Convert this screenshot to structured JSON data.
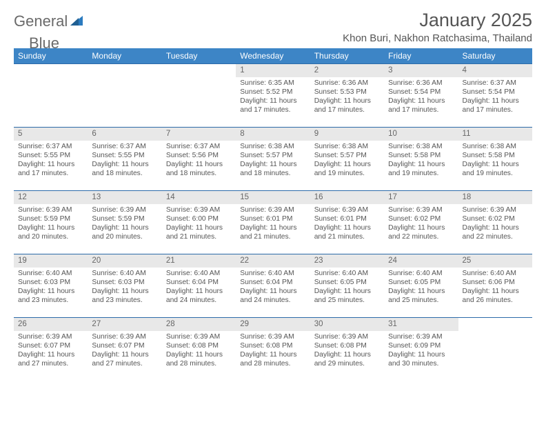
{
  "brand": {
    "name_a": "General",
    "name_b": "Blue"
  },
  "title": "January 2025",
  "location": "Khon Buri, Nakhon Ratchasima, Thailand",
  "colors": {
    "header_bg": "#3d85c6",
    "header_text": "#ffffff",
    "row_divider": "#2b6aa8",
    "daynum_bg": "#e8e8e8",
    "body_text": "#555555",
    "logo_gray": "#6a6a6a",
    "logo_blue": "#2b7bbf",
    "page_bg": "#ffffff"
  },
  "font": {
    "title_size": 27,
    "location_size": 15,
    "header_size": 12,
    "daynum_size": 11.5,
    "body_size": 10.3
  },
  "weekdays": [
    "Sunday",
    "Monday",
    "Tuesday",
    "Wednesday",
    "Thursday",
    "Friday",
    "Saturday"
  ],
  "weeks": [
    [
      null,
      null,
      null,
      {
        "n": "1",
        "sr": "6:35 AM",
        "ss": "5:52 PM",
        "dl": "11 hours and 17 minutes."
      },
      {
        "n": "2",
        "sr": "6:36 AM",
        "ss": "5:53 PM",
        "dl": "11 hours and 17 minutes."
      },
      {
        "n": "3",
        "sr": "6:36 AM",
        "ss": "5:54 PM",
        "dl": "11 hours and 17 minutes."
      },
      {
        "n": "4",
        "sr": "6:37 AM",
        "ss": "5:54 PM",
        "dl": "11 hours and 17 minutes."
      }
    ],
    [
      {
        "n": "5",
        "sr": "6:37 AM",
        "ss": "5:55 PM",
        "dl": "11 hours and 17 minutes."
      },
      {
        "n": "6",
        "sr": "6:37 AM",
        "ss": "5:55 PM",
        "dl": "11 hours and 18 minutes."
      },
      {
        "n": "7",
        "sr": "6:37 AM",
        "ss": "5:56 PM",
        "dl": "11 hours and 18 minutes."
      },
      {
        "n": "8",
        "sr": "6:38 AM",
        "ss": "5:57 PM",
        "dl": "11 hours and 18 minutes."
      },
      {
        "n": "9",
        "sr": "6:38 AM",
        "ss": "5:57 PM",
        "dl": "11 hours and 19 minutes."
      },
      {
        "n": "10",
        "sr": "6:38 AM",
        "ss": "5:58 PM",
        "dl": "11 hours and 19 minutes."
      },
      {
        "n": "11",
        "sr": "6:38 AM",
        "ss": "5:58 PM",
        "dl": "11 hours and 19 minutes."
      }
    ],
    [
      {
        "n": "12",
        "sr": "6:39 AM",
        "ss": "5:59 PM",
        "dl": "11 hours and 20 minutes."
      },
      {
        "n": "13",
        "sr": "6:39 AM",
        "ss": "5:59 PM",
        "dl": "11 hours and 20 minutes."
      },
      {
        "n": "14",
        "sr": "6:39 AM",
        "ss": "6:00 PM",
        "dl": "11 hours and 21 minutes."
      },
      {
        "n": "15",
        "sr": "6:39 AM",
        "ss": "6:01 PM",
        "dl": "11 hours and 21 minutes."
      },
      {
        "n": "16",
        "sr": "6:39 AM",
        "ss": "6:01 PM",
        "dl": "11 hours and 21 minutes."
      },
      {
        "n": "17",
        "sr": "6:39 AM",
        "ss": "6:02 PM",
        "dl": "11 hours and 22 minutes."
      },
      {
        "n": "18",
        "sr": "6:39 AM",
        "ss": "6:02 PM",
        "dl": "11 hours and 22 minutes."
      }
    ],
    [
      {
        "n": "19",
        "sr": "6:40 AM",
        "ss": "6:03 PM",
        "dl": "11 hours and 23 minutes."
      },
      {
        "n": "20",
        "sr": "6:40 AM",
        "ss": "6:03 PM",
        "dl": "11 hours and 23 minutes."
      },
      {
        "n": "21",
        "sr": "6:40 AM",
        "ss": "6:04 PM",
        "dl": "11 hours and 24 minutes."
      },
      {
        "n": "22",
        "sr": "6:40 AM",
        "ss": "6:04 PM",
        "dl": "11 hours and 24 minutes."
      },
      {
        "n": "23",
        "sr": "6:40 AM",
        "ss": "6:05 PM",
        "dl": "11 hours and 25 minutes."
      },
      {
        "n": "24",
        "sr": "6:40 AM",
        "ss": "6:05 PM",
        "dl": "11 hours and 25 minutes."
      },
      {
        "n": "25",
        "sr": "6:40 AM",
        "ss": "6:06 PM",
        "dl": "11 hours and 26 minutes."
      }
    ],
    [
      {
        "n": "26",
        "sr": "6:39 AM",
        "ss": "6:07 PM",
        "dl": "11 hours and 27 minutes."
      },
      {
        "n": "27",
        "sr": "6:39 AM",
        "ss": "6:07 PM",
        "dl": "11 hours and 27 minutes."
      },
      {
        "n": "28",
        "sr": "6:39 AM",
        "ss": "6:08 PM",
        "dl": "11 hours and 28 minutes."
      },
      {
        "n": "29",
        "sr": "6:39 AM",
        "ss": "6:08 PM",
        "dl": "11 hours and 28 minutes."
      },
      {
        "n": "30",
        "sr": "6:39 AM",
        "ss": "6:08 PM",
        "dl": "11 hours and 29 minutes."
      },
      {
        "n": "31",
        "sr": "6:39 AM",
        "ss": "6:09 PM",
        "dl": "11 hours and 30 minutes."
      },
      null
    ]
  ],
  "labels": {
    "sunrise": "Sunrise:",
    "sunset": "Sunset:",
    "daylight": "Daylight:"
  }
}
